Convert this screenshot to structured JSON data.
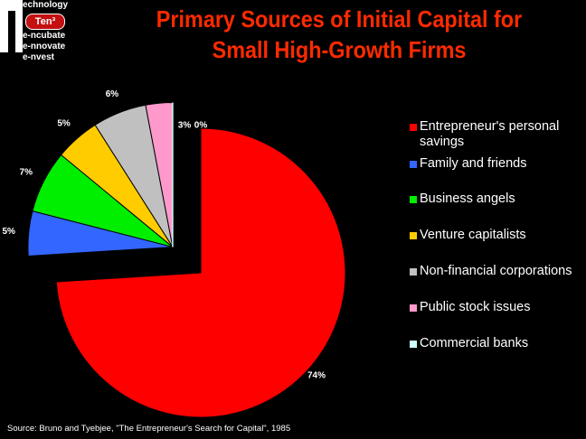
{
  "logo": {
    "line_top": "echnology",
    "badge": "Ten³",
    "line1": "e-ncubate",
    "line2": "e-nnovate",
    "line3": "e-nvest"
  },
  "title": {
    "line1": "Primary Sources of Initial Capital for",
    "line2": "Small High-Growth Firms"
  },
  "source": "Source: Bruno and Tyebjee, \"The Entrepreneur's Search for Capital\", 1985",
  "chart_data": {
    "type": "pie",
    "title": "Primary Sources of Initial Capital for Small High-Growth Firms",
    "legend_position": "right",
    "slices": [
      {
        "name": "Entrepreneur's personal savings",
        "value": 74,
        "label": "74%",
        "color": "#ff0000"
      },
      {
        "name": "Family and friends",
        "value": 5,
        "label": "5%",
        "color": "#3366ff"
      },
      {
        "name": "Business angels",
        "value": 7,
        "label": "7%",
        "color": "#00ee00"
      },
      {
        "name": "Venture capitalists",
        "value": 5,
        "label": "5%",
        "color": "#ffcc00"
      },
      {
        "name": "Non-financial corporations",
        "value": 6,
        "label": "6%",
        "color": "#c0c0c0"
      },
      {
        "name": "Public stock issues",
        "value": 3,
        "label": "3%",
        "color": "#ff99cc"
      },
      {
        "name": "Commercial banks",
        "value": 0,
        "label": "0%",
        "color": "#ccffff"
      }
    ]
  }
}
